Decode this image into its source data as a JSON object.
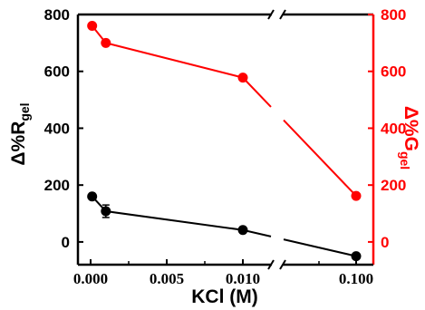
{
  "chart_data": {
    "type": "line",
    "xlabel": "KCl (M)",
    "ylabel_left": {
      "main": "Δ%R",
      "sub": "gel"
    },
    "ylabel_right": {
      "main": "Δ%G",
      "sub": "gel"
    },
    "x_axis_break": true,
    "x_ticks": [
      "0.000",
      "0.005",
      "0.010",
      "0.100"
    ],
    "left_ticks": [
      "0",
      "200",
      "400",
      "600",
      "800"
    ],
    "right_ticks": [
      "0",
      "200",
      "400",
      "600",
      "800"
    ],
    "ylim": [
      -80,
      800
    ],
    "grid": false,
    "series": [
      {
        "axis": "left",
        "color": "#000000",
        "x": [
          0.0001,
          0.001,
          0.01,
          0.1
        ],
        "y": [
          160,
          108,
          42,
          -50
        ],
        "error": [
          0,
          22,
          0,
          0
        ]
      },
      {
        "axis": "right",
        "color": "#ff0000",
        "x": [
          0.0001,
          0.001,
          0.01,
          0.1
        ],
        "y": [
          760,
          700,
          578,
          162
        ],
        "error": [
          0,
          0,
          0,
          0
        ]
      }
    ]
  }
}
